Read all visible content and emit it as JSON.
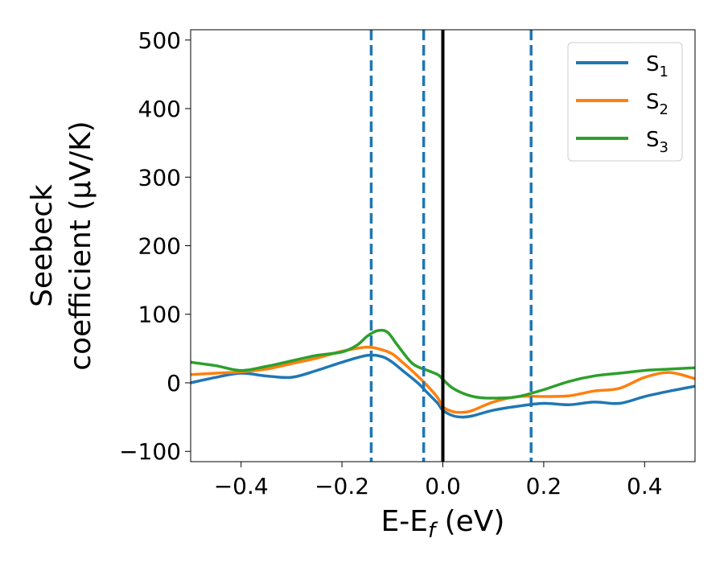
{
  "chart_data": {
    "type": "line",
    "xlabel": "E-E",
    "xlabel_subscript": "f",
    "xlabel_unit": " (eV)",
    "ylabel_line1": "Seebeck",
    "ylabel_line2": "coefficient  (μV/K)",
    "xlim": [
      -0.5,
      0.5
    ],
    "ylim": [
      -115,
      515
    ],
    "xticks": [
      -0.4,
      -0.2,
      0.0,
      0.2,
      0.4
    ],
    "xtick_labels": [
      "−0.4",
      "−0.2",
      "0.0",
      "0.2",
      "0.4"
    ],
    "yticks": [
      -100,
      0,
      100,
      200,
      300,
      400,
      500
    ],
    "ytick_labels": [
      "−100",
      "0",
      "100",
      "200",
      "300",
      "400",
      "500"
    ],
    "grid": false,
    "legend_position": "top-right",
    "vertical_lines": [
      {
        "x": -0.142,
        "style": "dashed",
        "color": "#1f77b4"
      },
      {
        "x": -0.038,
        "style": "dashed",
        "color": "#1f77b4"
      },
      {
        "x": 0.0,
        "style": "solid",
        "color": "#000000"
      },
      {
        "x": 0.175,
        "style": "dashed",
        "color": "#1f77b4"
      }
    ],
    "series": [
      {
        "name": "S",
        "subscript": "1",
        "color": "#1f77b4",
        "x": [
          -0.5,
          -0.45,
          -0.4,
          -0.35,
          -0.3,
          -0.25,
          -0.2,
          -0.15,
          -0.12,
          -0.1,
          -0.08,
          -0.05,
          -0.03,
          -0.01,
          0.0,
          0.02,
          0.04,
          0.06,
          0.1,
          0.15,
          0.2,
          0.25,
          0.3,
          0.35,
          0.4,
          0.45,
          0.5
        ],
        "y": [
          0,
          8,
          14,
          10,
          8,
          18,
          30,
          40,
          38,
          30,
          18,
          0,
          -15,
          -30,
          -40,
          -48,
          -50,
          -48,
          -40,
          -34,
          -30,
          -32,
          -28,
          -30,
          -20,
          -12,
          -5
        ]
      },
      {
        "name": "S",
        "subscript": "2",
        "color": "#ff7f0e",
        "x": [
          -0.5,
          -0.45,
          -0.4,
          -0.35,
          -0.3,
          -0.25,
          -0.2,
          -0.15,
          -0.12,
          -0.1,
          -0.08,
          -0.05,
          -0.03,
          -0.01,
          0.0,
          0.02,
          0.04,
          0.06,
          0.1,
          0.15,
          0.2,
          0.25,
          0.3,
          0.35,
          0.4,
          0.45,
          0.5
        ],
        "y": [
          12,
          14,
          16,
          20,
          28,
          36,
          46,
          52,
          48,
          42,
          30,
          10,
          -5,
          -22,
          -35,
          -42,
          -43,
          -40,
          -28,
          -20,
          -20,
          -19,
          -12,
          -8,
          8,
          15,
          6
        ]
      },
      {
        "name": "S",
        "subscript": "3",
        "color": "#2ca02c",
        "x": [
          -0.5,
          -0.45,
          -0.4,
          -0.35,
          -0.3,
          -0.25,
          -0.2,
          -0.17,
          -0.15,
          -0.13,
          -0.11,
          -0.09,
          -0.06,
          -0.03,
          -0.01,
          0.0,
          0.02,
          0.05,
          0.08,
          0.12,
          0.15,
          0.2,
          0.25,
          0.3,
          0.35,
          0.4,
          0.45,
          0.5
        ],
        "y": [
          30,
          25,
          18,
          24,
          32,
          40,
          45,
          55,
          68,
          76,
          74,
          55,
          28,
          18,
          12,
          5,
          -8,
          -18,
          -22,
          -22,
          -20,
          -10,
          2,
          10,
          14,
          18,
          20,
          22
        ]
      }
    ]
  }
}
